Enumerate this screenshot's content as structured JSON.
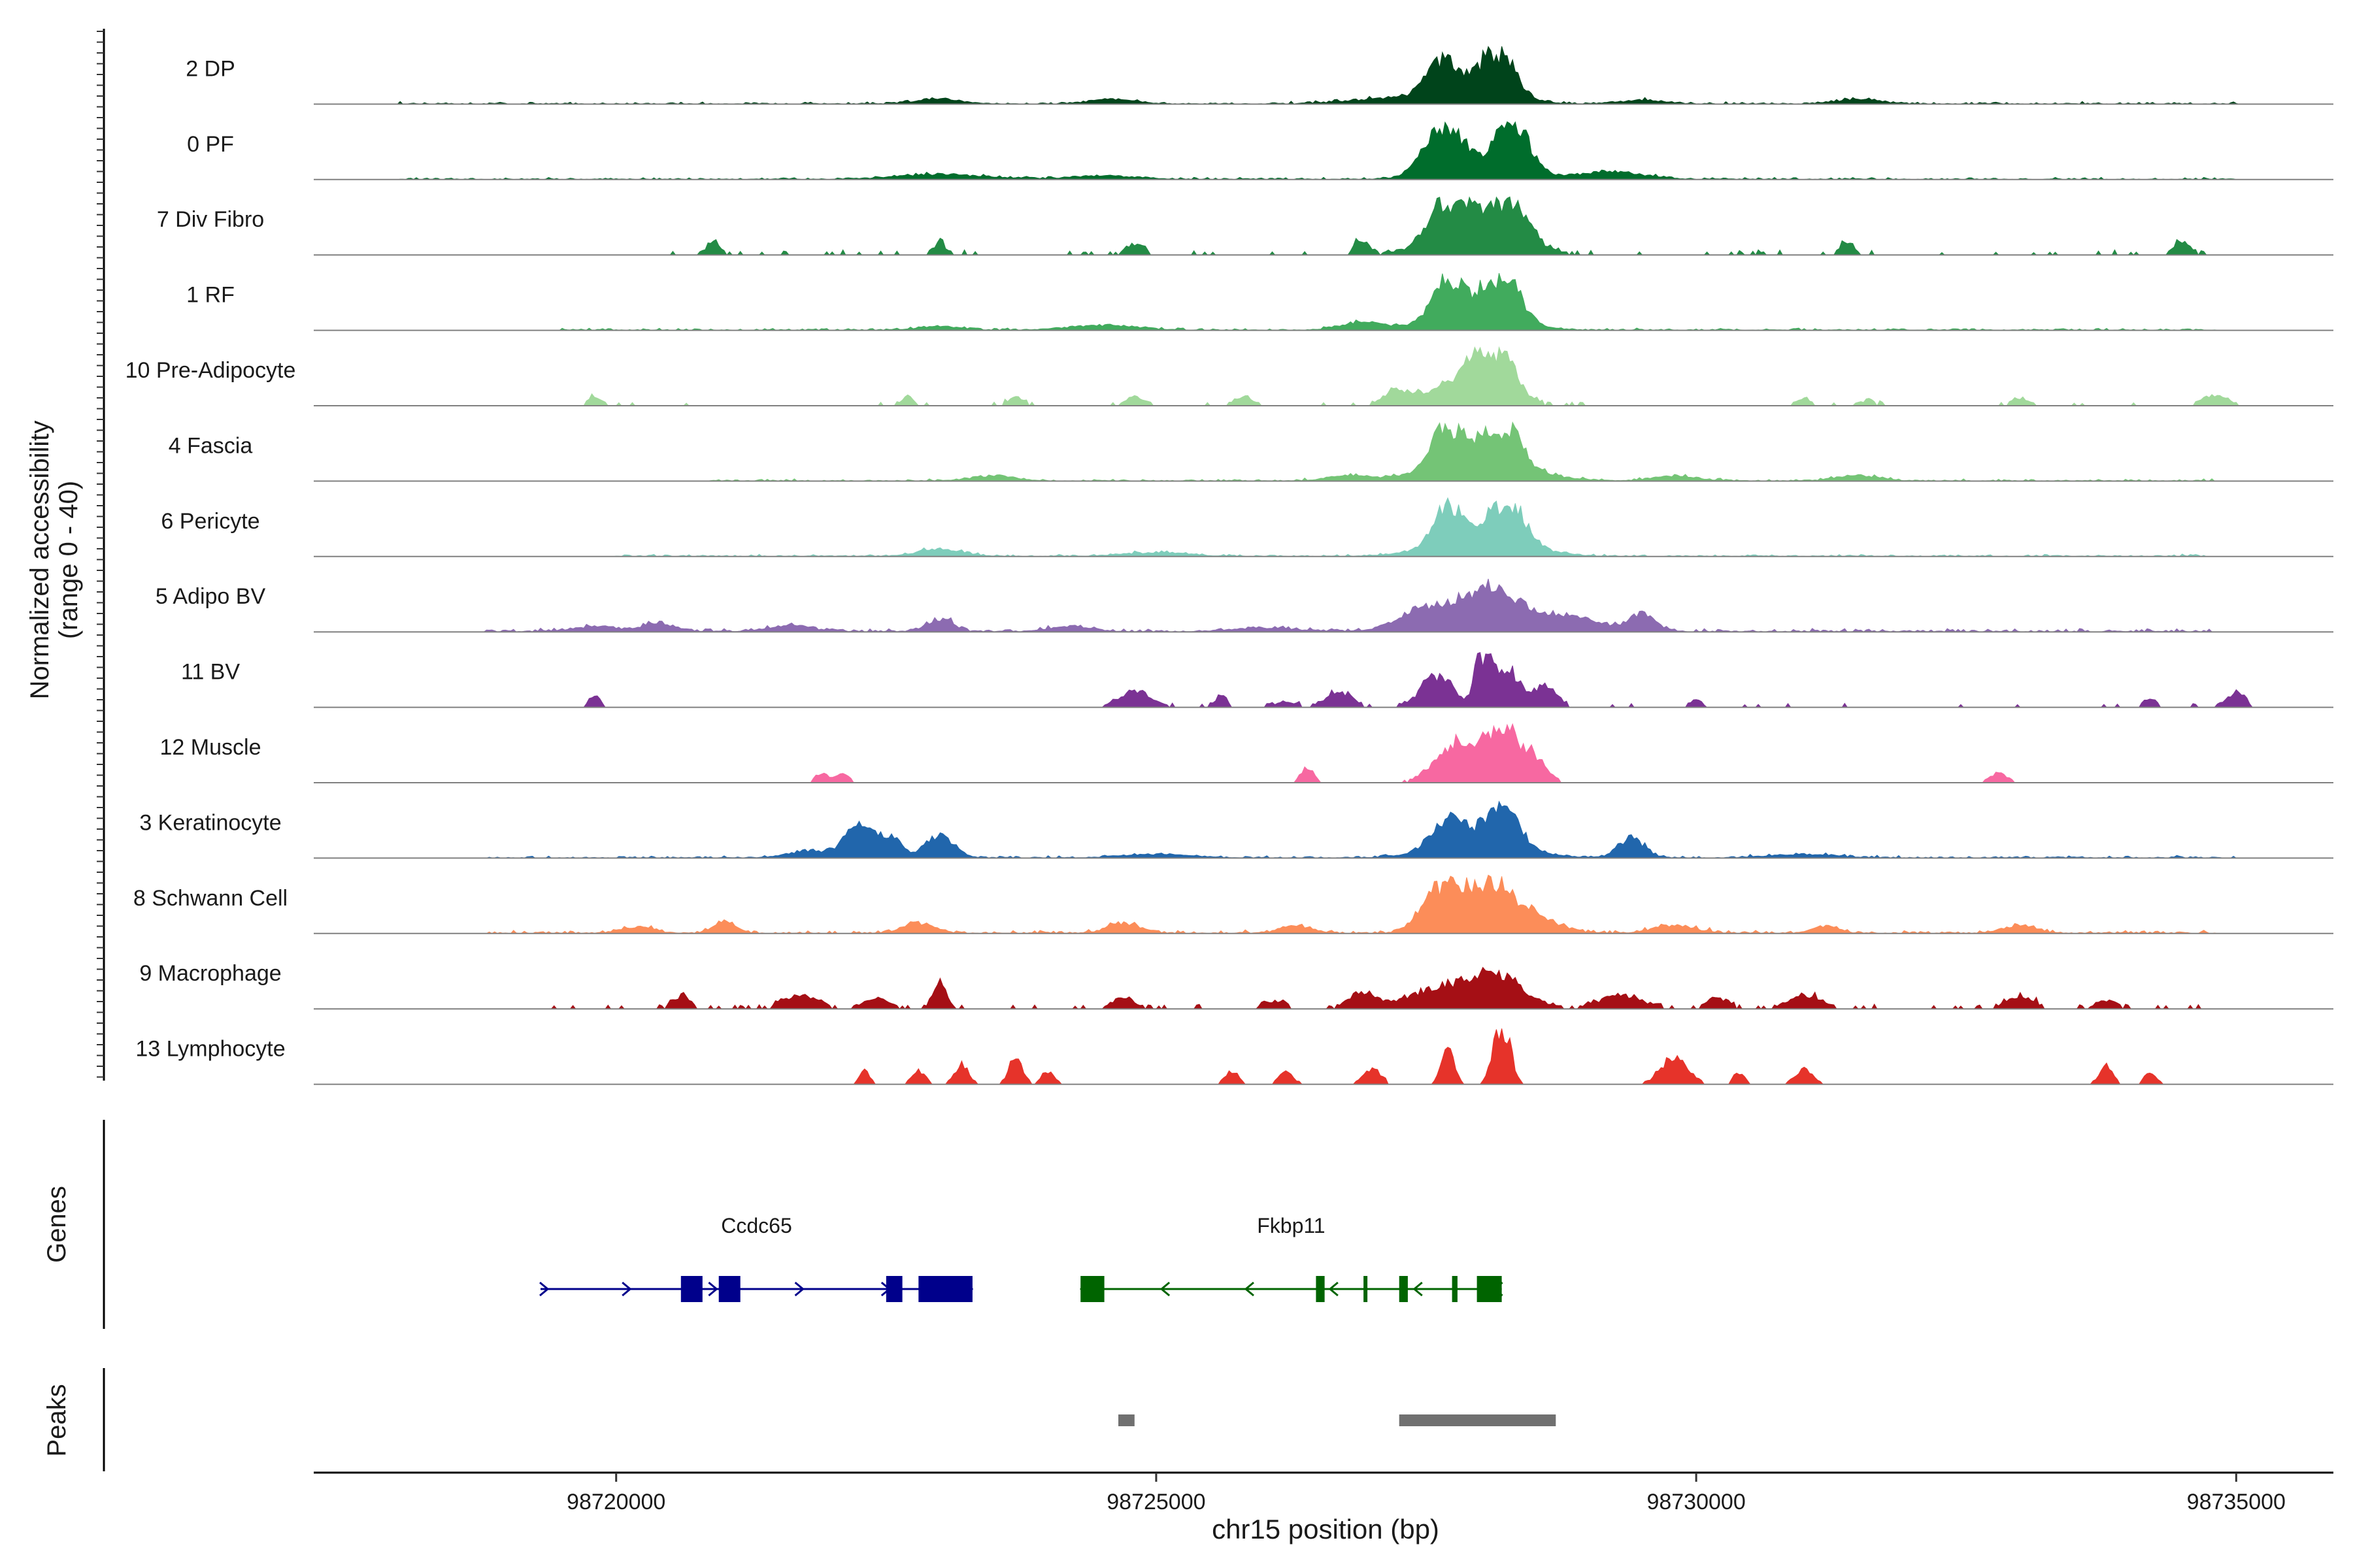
{
  "chart_data": {
    "type": "area",
    "title": "",
    "ylabel_line1": "Normalized accessibility",
    "ylabel_line2": "(range 0 - 40)",
    "xlabel": "chr15 position (bp)",
    "xlim": [
      98717200,
      98735900
    ],
    "ylim": [
      0,
      40
    ],
    "x_ticks": [
      98720000,
      98725000,
      98730000,
      98735000
    ],
    "x_tick_labels": [
      "98720000",
      "98725000",
      "98730000",
      "98735000"
    ],
    "series": [
      {
        "name": "2 DP",
        "color": "#00441b",
        "peaks": [
          [
            98728160,
            38,
            150
          ],
          [
            98727650,
            26,
            140
          ],
          [
            98727850,
            10,
            400
          ],
          [
            98723000,
            4,
            200
          ],
          [
            98724600,
            4,
            200
          ],
          [
            98727000,
            3,
            300
          ],
          [
            98729500,
            3,
            200
          ],
          [
            98731500,
            4,
            200
          ]
        ],
        "noise": 2,
        "noise_extent": [
          98718000,
          98735000
        ],
        "baseline": true
      },
      {
        "name": "0 PF",
        "color": "#006d2c",
        "peaks": [
          [
            98727650,
            42,
            150
          ],
          [
            98728300,
            42,
            150
          ],
          [
            98727950,
            12,
            350
          ],
          [
            98723000,
            4,
            400
          ],
          [
            98724500,
            3,
            300
          ],
          [
            98729200,
            6,
            300
          ]
        ],
        "noise": 2,
        "noise_extent": [
          98718000,
          98735000
        ],
        "baseline": true
      },
      {
        "name": "7 Div Fibro",
        "color": "#238b45",
        "peaks": [
          [
            98727700,
            40,
            130
          ],
          [
            98728200,
            44,
            180
          ],
          [
            98727950,
            26,
            350
          ],
          [
            98726900,
            12,
            60
          ],
          [
            98720900,
            10,
            60
          ],
          [
            98723000,
            10,
            50
          ],
          [
            98724800,
            8,
            80
          ],
          [
            98731400,
            10,
            60
          ],
          [
            98734500,
            10,
            80
          ]
        ],
        "noise": 4,
        "noise_extent": [
          98720500,
          98734800
        ],
        "baseline": true,
        "spotty": true
      },
      {
        "name": "1 RF",
        "color": "#41ab5d",
        "peaks": [
          [
            98727700,
            34,
            130
          ],
          [
            98728200,
            38,
            150
          ],
          [
            98727950,
            16,
            350
          ],
          [
            98726900,
            6,
            200
          ],
          [
            98724500,
            4,
            300
          ],
          [
            98723000,
            3,
            200
          ]
        ],
        "noise": 2,
        "noise_extent": [
          98719500,
          98734800
        ],
        "baseline": true
      },
      {
        "name": "10 Pre-Adipocyte",
        "color": "#a1d99b",
        "peaks": [
          [
            98728100,
            46,
            180
          ],
          [
            98727800,
            16,
            350
          ],
          [
            98727200,
            8,
            100
          ],
          [
            98719800,
            8,
            60
          ],
          [
            98722700,
            6,
            60
          ],
          [
            98723700,
            6,
            80
          ],
          [
            98724800,
            6,
            80
          ],
          [
            98725800,
            7,
            80
          ],
          [
            98734800,
            8,
            120
          ],
          [
            98733000,
            6,
            80
          ],
          [
            98731000,
            5,
            60
          ],
          [
            98731600,
            4,
            60
          ]
        ],
        "noise": 3,
        "noise_extent": [
          98719600,
          98735100
        ],
        "baseline": true,
        "spotty": true
      },
      {
        "name": "4 Fascia",
        "color": "#74c476",
        "peaks": [
          [
            98727700,
            34,
            150
          ],
          [
            98728200,
            38,
            160
          ],
          [
            98728000,
            14,
            450
          ],
          [
            98723500,
            4,
            200
          ],
          [
            98726800,
            4,
            200
          ],
          [
            98729800,
            4,
            200
          ],
          [
            98731500,
            4,
            200
          ]
        ],
        "noise": 2,
        "noise_extent": [
          98720800,
          98734800
        ],
        "baseline": true
      },
      {
        "name": "6 Pericyte",
        "color": "#7ecdbb",
        "peaks": [
          [
            98727700,
            30,
            120
          ],
          [
            98728250,
            36,
            150
          ],
          [
            98728000,
            16,
            400
          ],
          [
            98723000,
            6,
            200
          ],
          [
            98725000,
            3,
            300
          ]
        ],
        "noise": 2,
        "noise_extent": [
          98720000,
          98734700
        ],
        "baseline": true
      },
      {
        "name": "5 Adipo BV",
        "color": "#8c6bb1",
        "peaks": [
          [
            98728100,
            36,
            250
          ],
          [
            98727500,
            18,
            250
          ],
          [
            98729500,
            14,
            120
          ],
          [
            98728800,
            12,
            300
          ],
          [
            98723000,
            10,
            120
          ],
          [
            98720400,
            7,
            150
          ],
          [
            98719800,
            4,
            200
          ],
          [
            98721600,
            5,
            200
          ],
          [
            98724200,
            4,
            200
          ],
          [
            98726000,
            3,
            300
          ]
        ],
        "noise": 3,
        "noise_extent": [
          98718800,
          98734800
        ],
        "baseline": true
      },
      {
        "name": "11 BV",
        "color": "#7b3294",
        "peaks": [
          [
            98728030,
            80,
            60
          ],
          [
            98728250,
            30,
            120
          ],
          [
            98727600,
            24,
            150
          ],
          [
            98728600,
            18,
            100
          ],
          [
            98719800,
            10,
            50
          ],
          [
            98724800,
            12,
            150
          ],
          [
            98725600,
            8,
            60
          ],
          [
            98726700,
            12,
            120
          ],
          [
            98735000,
            12,
            80
          ],
          [
            98734200,
            6,
            60
          ],
          [
            98730000,
            6,
            50
          ],
          [
            98726200,
            4,
            100
          ]
        ],
        "noise": 3,
        "noise_extent": [
          98724600,
          98735100
        ],
        "baseline": true,
        "spotty": true
      },
      {
        "name": "12 Muscle",
        "color": "#f768a1",
        "peaks": [
          [
            98728200,
            56,
            120
          ],
          [
            98727800,
            32,
            200
          ],
          [
            98728500,
            20,
            100
          ],
          [
            98726400,
            12,
            60
          ],
          [
            98721900,
            8,
            60
          ],
          [
            98722100,
            8,
            60
          ],
          [
            98732800,
            8,
            80
          ]
        ],
        "noise": 3,
        "noise_extent": [
          98727300,
          98728800
        ],
        "baseline": true,
        "spotty": true
      },
      {
        "name": "3 Keratinocyte",
        "color": "#2166ac",
        "peaks": [
          [
            98722250,
            28,
            120
          ],
          [
            98722550,
            16,
            100
          ],
          [
            98723000,
            18,
            130
          ],
          [
            98727700,
            22,
            150
          ],
          [
            98728200,
            32,
            150
          ],
          [
            98728000,
            12,
            400
          ],
          [
            98729400,
            16,
            120
          ],
          [
            98721800,
            6,
            200
          ],
          [
            98725000,
            3,
            300
          ],
          [
            98731000,
            3,
            300
          ]
        ],
        "noise": 2,
        "noise_extent": [
          98718800,
          98735000
        ],
        "baseline": true
      },
      {
        "name": "8 Schwann Cell",
        "color": "#fc8d59",
        "peaks": [
          [
            98728000,
            48,
            180
          ],
          [
            98727600,
            32,
            160
          ],
          [
            98728400,
            18,
            250
          ],
          [
            98721000,
            10,
            100
          ],
          [
            98722800,
            8,
            150
          ],
          [
            98724700,
            8,
            150
          ],
          [
            98726300,
            6,
            150
          ],
          [
            98729800,
            6,
            200
          ],
          [
            98731200,
            6,
            120
          ],
          [
            98733000,
            6,
            150
          ],
          [
            98720200,
            5,
            150
          ]
        ],
        "noise": 3,
        "noise_extent": [
          98718800,
          98734800
        ],
        "baseline": true
      },
      {
        "name": "9 Macrophage",
        "color": "#a50f15",
        "peaks": [
          [
            98723000,
            22,
            60
          ],
          [
            98728150,
            26,
            250
          ],
          [
            98727600,
            14,
            300
          ],
          [
            98726900,
            12,
            120
          ],
          [
            98729300,
            10,
            200
          ],
          [
            98720600,
            10,
            80
          ],
          [
            98721700,
            10,
            150
          ],
          [
            98722400,
            8,
            120
          ],
          [
            98724700,
            8,
            100
          ],
          [
            98726100,
            6,
            100
          ],
          [
            98730200,
            8,
            100
          ],
          [
            98731000,
            10,
            150
          ],
          [
            98733000,
            10,
            120
          ],
          [
            98733800,
            6,
            100
          ]
        ],
        "noise": 4,
        "noise_extent": [
          98719300,
          98734800
        ],
        "baseline": true,
        "spotty": true
      },
      {
        "name": "13 Lymphocyte",
        "color": "#e6332a",
        "peaks": [
          [
            98728200,
            64,
            70
          ],
          [
            98727700,
            28,
            60
          ],
          [
            98723700,
            22,
            60
          ],
          [
            98723200,
            16,
            60
          ],
          [
            98729800,
            22,
            120
          ],
          [
            98727000,
            12,
            80
          ],
          [
            98726200,
            10,
            60
          ],
          [
            98731000,
            12,
            80
          ],
          [
            98733800,
            14,
            60
          ],
          [
            98722300,
            10,
            50
          ],
          [
            98722800,
            10,
            60
          ],
          [
            98724000,
            10,
            60
          ],
          [
            98725700,
            10,
            60
          ],
          [
            98730400,
            8,
            60
          ],
          [
            98734200,
            8,
            60
          ]
        ],
        "noise": 2,
        "noise_extent": [
          98722000,
          98734400
        ],
        "baseline": true,
        "spotty": true
      }
    ],
    "genes_label": "Genes",
    "peaks_label": "Peaks",
    "genes": [
      {
        "name": "Ccdc65",
        "strand": "+",
        "color": "#00008b",
        "start": 98719300,
        "end": 98723300,
        "exons": [
          [
            98720600,
            98720800
          ],
          [
            98720950,
            98721150
          ],
          [
            98722500,
            98722650
          ],
          [
            98722800,
            98723300
          ]
        ]
      },
      {
        "name": "Fkbp11",
        "strand": "-",
        "color": "#006400",
        "start": 98724300,
        "end": 98728200,
        "exons": [
          [
            98724300,
            98724520
          ],
          [
            98726480,
            98726560
          ],
          [
            98726920,
            98726945
          ],
          [
            98727250,
            98727330
          ],
          [
            98727740,
            98727790
          ],
          [
            98727970,
            98728200
          ]
        ]
      }
    ],
    "peaks": [
      [
        98724650,
        98724800
      ],
      [
        98727250,
        98728700
      ]
    ]
  }
}
